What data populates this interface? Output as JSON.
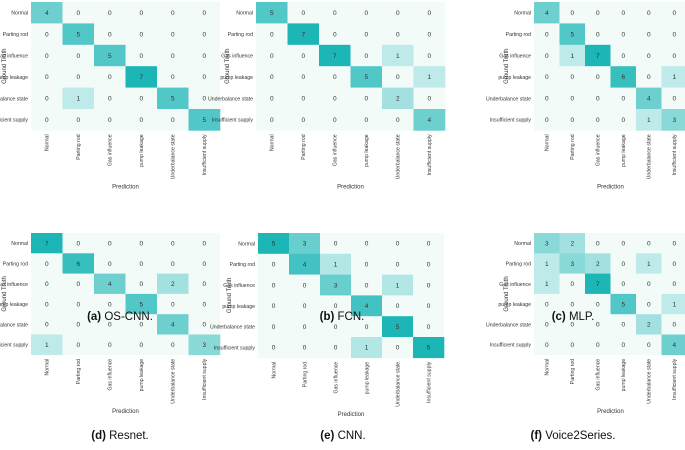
{
  "chart_data": [
    {
      "type": "heatmap",
      "label": "(a)",
      "title": "OS-CNN.",
      "xlabel": "Prediction",
      "ylabel": "Ground Truth",
      "classes": [
        "Normal",
        "Parting rod",
        "Gas influence",
        "pump leakage",
        "Underbalance state",
        "Insufficient supply"
      ],
      "matrix": [
        [
          4,
          0,
          0,
          0,
          0,
          0
        ],
        [
          0,
          5,
          0,
          0,
          0,
          0
        ],
        [
          0,
          0,
          5,
          0,
          0,
          0
        ],
        [
          0,
          0,
          0,
          7,
          0,
          0
        ],
        [
          0,
          1,
          0,
          0,
          5,
          0
        ],
        [
          0,
          0,
          0,
          0,
          0,
          5
        ]
      ]
    },
    {
      "type": "heatmap",
      "label": "(b)",
      "title": "FCN.",
      "xlabel": "Prediction",
      "ylabel": "Ground Truth",
      "classes": [
        "Normal",
        "Parting rod",
        "Gas influence",
        "pump leakage",
        "Underbalance state",
        "Insufficient supply"
      ],
      "matrix": [
        [
          5,
          0,
          0,
          0,
          0,
          0
        ],
        [
          0,
          7,
          0,
          0,
          0,
          0
        ],
        [
          0,
          0,
          7,
          0,
          1,
          0
        ],
        [
          0,
          0,
          0,
          5,
          0,
          1
        ],
        [
          0,
          0,
          0,
          0,
          2,
          0
        ],
        [
          0,
          0,
          0,
          0,
          0,
          4
        ]
      ]
    },
    {
      "type": "heatmap",
      "label": "(c)",
      "title": "MLP.",
      "xlabel": "Prediction",
      "ylabel": "Ground Truth",
      "classes": [
        "Normal",
        "Parting rod",
        "Gas influence",
        "pump leakage",
        "Underbalance state",
        "Insufficient supply"
      ],
      "matrix": [
        [
          4,
          0,
          0,
          0,
          0,
          0
        ],
        [
          0,
          5,
          0,
          0,
          0,
          0
        ],
        [
          0,
          1,
          7,
          0,
          0,
          0
        ],
        [
          0,
          0,
          0,
          6,
          0,
          1
        ],
        [
          0,
          0,
          0,
          0,
          4,
          0
        ],
        [
          0,
          0,
          0,
          0,
          1,
          3
        ]
      ]
    },
    {
      "type": "heatmap",
      "label": "(d)",
      "title": "Resnet.",
      "xlabel": "Prediction",
      "ylabel": "Ground Truth",
      "classes": [
        "Normal",
        "Parting rod",
        "Gas influence",
        "pump leakage",
        "Underbalance state",
        "Insufficient supply"
      ],
      "matrix": [
        [
          7,
          0,
          0,
          0,
          0,
          0
        ],
        [
          0,
          6,
          0,
          0,
          0,
          0
        ],
        [
          0,
          0,
          4,
          0,
          2,
          0
        ],
        [
          0,
          0,
          0,
          5,
          0,
          0
        ],
        [
          0,
          0,
          0,
          0,
          4,
          0
        ],
        [
          1,
          0,
          0,
          0,
          0,
          3
        ]
      ]
    },
    {
      "type": "heatmap",
      "label": "(e)",
      "title": "CNN.",
      "xlabel": "Prediction",
      "ylabel": "Ground Truth",
      "classes": [
        "Normal",
        "Parting rod",
        "Gas influence",
        "pump leakage",
        "Underbalance state",
        "Insufficient supply"
      ],
      "matrix": [
        [
          5,
          3,
          0,
          0,
          0,
          0
        ],
        [
          0,
          4,
          1,
          0,
          0,
          0
        ],
        [
          0,
          0,
          3,
          0,
          1,
          0
        ],
        [
          0,
          0,
          0,
          4,
          0,
          0
        ],
        [
          0,
          0,
          0,
          0,
          5,
          0
        ],
        [
          0,
          0,
          0,
          1,
          0,
          5
        ]
      ]
    },
    {
      "type": "heatmap",
      "label": "(f)",
      "title": "Voice2Series.",
      "xlabel": "Prediction",
      "ylabel": "Ground Truth",
      "classes": [
        "Normal",
        "Parting rod",
        "Gas influence",
        "pump leakage",
        "Underbalance state",
        "Insufficient supply"
      ],
      "matrix": [
        [
          3,
          2,
          0,
          0,
          0,
          0
        ],
        [
          1,
          3,
          2,
          0,
          1,
          0
        ],
        [
          1,
          0,
          7,
          0,
          0,
          0
        ],
        [
          0,
          0,
          0,
          5,
          0,
          1
        ],
        [
          0,
          0,
          0,
          0,
          2,
          0
        ],
        [
          0,
          0,
          0,
          0,
          0,
          4
        ]
      ]
    }
  ],
  "colors": {
    "high": "#1cb6b6",
    "low": "#f3fbf9",
    "text": "#333333",
    "caption": "#111111"
  }
}
